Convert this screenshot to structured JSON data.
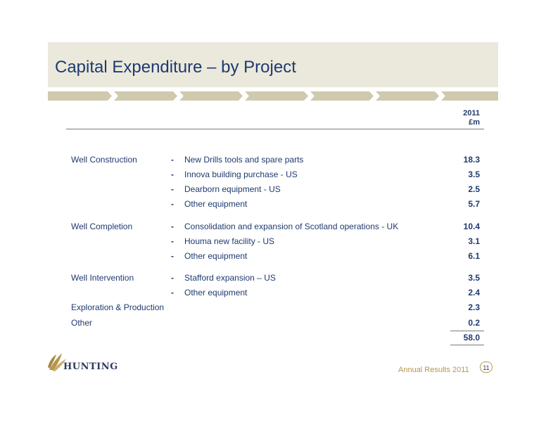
{
  "slide": {
    "title": "Capital Expenditure – by Project"
  },
  "table": {
    "header": {
      "year": "2011",
      "unit": "£m"
    },
    "rows": [
      {
        "category": "Well Construction",
        "dash": "-",
        "item": "New Drills tools and spare parts",
        "value": "18.3"
      },
      {
        "category": "",
        "dash": "-",
        "item": "Innova building purchase - US",
        "value": "3.5"
      },
      {
        "category": "",
        "dash": "-",
        "item": "Dearborn equipment - US",
        "value": "2.5"
      },
      {
        "category": "",
        "dash": "-",
        "item": "Other equipment",
        "value": "5.7"
      },
      {
        "category": "Well Completion",
        "dash": "-",
        "item": "Consolidation and expansion of Scotland operations - UK",
        "value": "10.4"
      },
      {
        "category": "",
        "dash": "-",
        "item": "Houma new facility - US",
        "value": "3.1"
      },
      {
        "category": "",
        "dash": "-",
        "item": "Other equipment",
        "value": "6.1"
      },
      {
        "category": "Well Intervention",
        "dash": "-",
        "item": "Stafford expansion – US",
        "value": "3.5"
      },
      {
        "category": "",
        "dash": "-",
        "item": "Other equipment",
        "value": "2.4"
      },
      {
        "category": "Exploration & Production",
        "dash": "",
        "item": "",
        "value": "2.3"
      },
      {
        "category": "Other",
        "dash": "",
        "item": "",
        "value": "0.2"
      }
    ],
    "total": "58.0"
  },
  "footer": {
    "brand": "HUNTING",
    "label": "Annual Results 2011",
    "page": "11"
  },
  "colors": {
    "navy": "#1f3a6f",
    "gold": "#b5964f",
    "band": "#ebe9dc",
    "chevron": "#cfc9ad"
  }
}
